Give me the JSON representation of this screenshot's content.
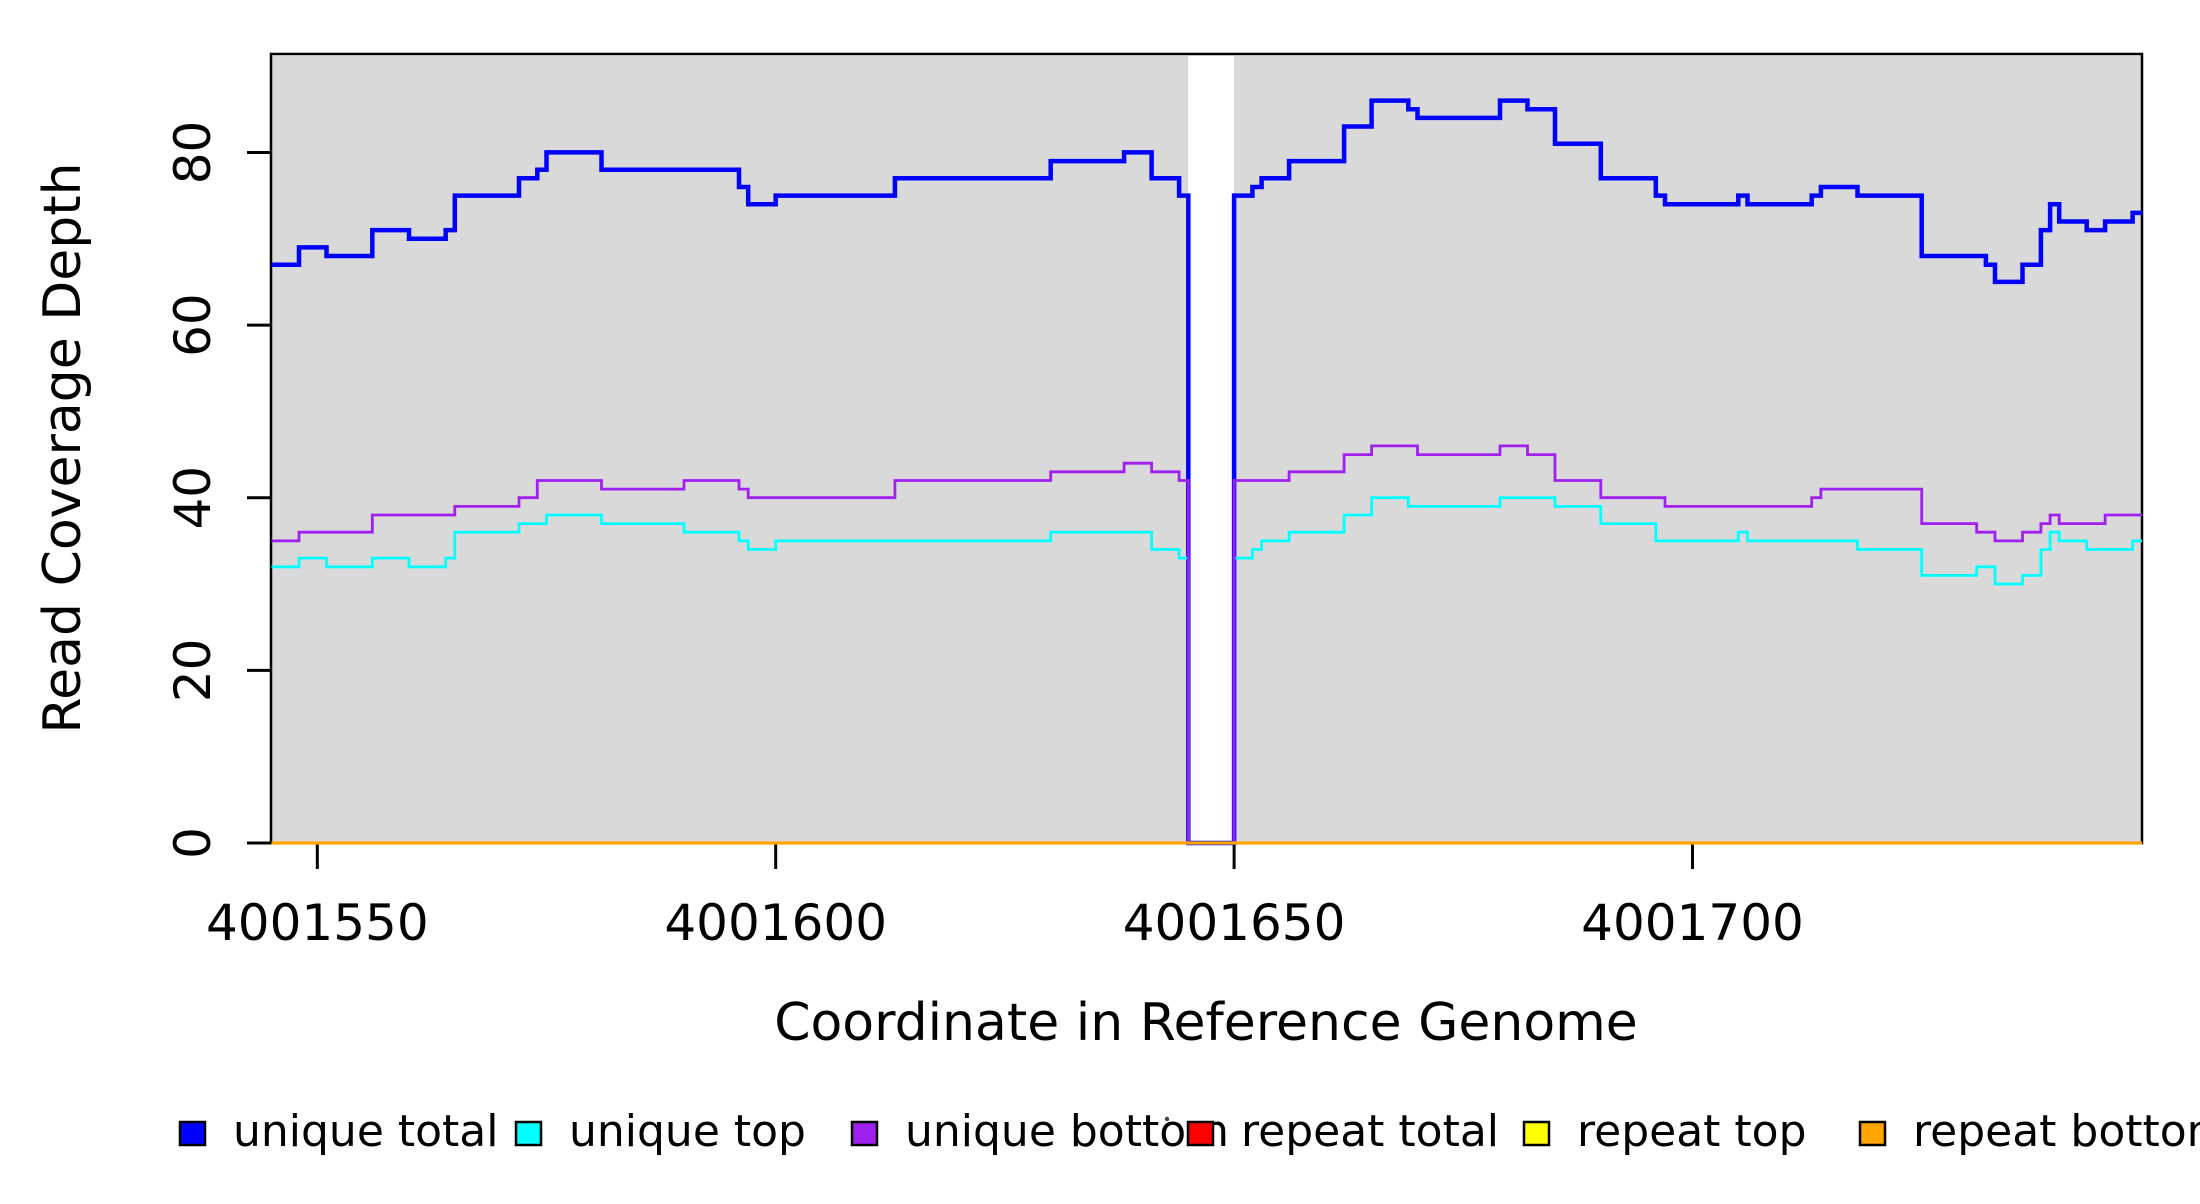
{
  "chart_data": {
    "type": "line",
    "subtype": "step-coverage-plot",
    "title": "",
    "xlabel": "Coordinate in Reference Genome",
    "ylabel": "Read Coverage Depth",
    "xlim": [
      4001545,
      4001749
    ],
    "ylim": [
      0,
      91.5
    ],
    "x_ticks": [
      4001550,
      4001600,
      4001650,
      4001700
    ],
    "y_ticks": [
      0,
      20,
      40,
      60,
      80
    ],
    "grid": false,
    "panel_color": "#d9d9d9",
    "gap_band": [
      4001645,
      4001650
    ],
    "shaded_ranges": [
      [
        4001545,
        4001645
      ],
      [
        4001650,
        4001749
      ]
    ],
    "legend_position": "bottom",
    "series": [
      {
        "name": "unique total",
        "color": "#0000ff",
        "width": 4.5,
        "points": [
          [
            4001545,
            67
          ],
          [
            4001548,
            69
          ],
          [
            4001551,
            68
          ],
          [
            4001556,
            71
          ],
          [
            4001560,
            70
          ],
          [
            4001564,
            71
          ],
          [
            4001565,
            75
          ],
          [
            4001572,
            77
          ],
          [
            4001574,
            78
          ],
          [
            4001575,
            80
          ],
          [
            4001581,
            78
          ],
          [
            4001596,
            76
          ],
          [
            4001597,
            74
          ],
          [
            4001600,
            75
          ],
          [
            4001613,
            77
          ],
          [
            4001630,
            79
          ],
          [
            4001638,
            80
          ],
          [
            4001641,
            77
          ],
          [
            4001644,
            75
          ],
          [
            4001645,
            0
          ],
          [
            4001650,
            75
          ],
          [
            4001652,
            76
          ],
          [
            4001653,
            77
          ],
          [
            4001656,
            79
          ],
          [
            4001662,
            83
          ],
          [
            4001665,
            86
          ],
          [
            4001669,
            85
          ],
          [
            4001670,
            84
          ],
          [
            4001679,
            86
          ],
          [
            4001682,
            85
          ],
          [
            4001685,
            81
          ],
          [
            4001690,
            77
          ],
          [
            4001696,
            75
          ],
          [
            4001697,
            74
          ],
          [
            4001705,
            75
          ],
          [
            4001706,
            74
          ],
          [
            4001713,
            75
          ],
          [
            4001714,
            76
          ],
          [
            4001718,
            75
          ],
          [
            4001725,
            68
          ],
          [
            4001732,
            67
          ],
          [
            4001733,
            65
          ],
          [
            4001736,
            67
          ],
          [
            4001738,
            71
          ],
          [
            4001739,
            74
          ],
          [
            4001740,
            72
          ],
          [
            4001743,
            71
          ],
          [
            4001745,
            72
          ],
          [
            4001748,
            73
          ]
        ]
      },
      {
        "name": "unique top",
        "color": "#00ffff",
        "width": 2.8,
        "points": [
          [
            4001545,
            32
          ],
          [
            4001548,
            33
          ],
          [
            4001551,
            32
          ],
          [
            4001556,
            33
          ],
          [
            4001560,
            32
          ],
          [
            4001564,
            33
          ],
          [
            4001565,
            36
          ],
          [
            4001572,
            37
          ],
          [
            4001575,
            38
          ],
          [
            4001581,
            37
          ],
          [
            4001590,
            36
          ],
          [
            4001596,
            35
          ],
          [
            4001597,
            34
          ],
          [
            4001600,
            35
          ],
          [
            4001630,
            36
          ],
          [
            4001641,
            34
          ],
          [
            4001644,
            33
          ],
          [
            4001645,
            0
          ],
          [
            4001650,
            33
          ],
          [
            4001652,
            34
          ],
          [
            4001653,
            35
          ],
          [
            4001656,
            36
          ],
          [
            4001662,
            38
          ],
          [
            4001665,
            40
          ],
          [
            4001669,
            39
          ],
          [
            4001679,
            40
          ],
          [
            4001685,
            39
          ],
          [
            4001690,
            37
          ],
          [
            4001696,
            35
          ],
          [
            4001705,
            36
          ],
          [
            4001706,
            35
          ],
          [
            4001718,
            34
          ],
          [
            4001725,
            31
          ],
          [
            4001731,
            32
          ],
          [
            4001733,
            30
          ],
          [
            4001736,
            31
          ],
          [
            4001738,
            34
          ],
          [
            4001739,
            36
          ],
          [
            4001740,
            35
          ],
          [
            4001743,
            34
          ],
          [
            4001748,
            35
          ]
        ]
      },
      {
        "name": "unique bottom",
        "color": "#a020f0",
        "width": 2.8,
        "points": [
          [
            4001545,
            35
          ],
          [
            4001548,
            36
          ],
          [
            4001556,
            38
          ],
          [
            4001565,
            39
          ],
          [
            4001572,
            40
          ],
          [
            4001574,
            42
          ],
          [
            4001581,
            41
          ],
          [
            4001590,
            42
          ],
          [
            4001596,
            41
          ],
          [
            4001597,
            40
          ],
          [
            4001613,
            42
          ],
          [
            4001630,
            43
          ],
          [
            4001638,
            44
          ],
          [
            4001641,
            43
          ],
          [
            4001644,
            42
          ],
          [
            4001645,
            0
          ],
          [
            4001650,
            42
          ],
          [
            4001656,
            43
          ],
          [
            4001662,
            45
          ],
          [
            4001665,
            46
          ],
          [
            4001670,
            45
          ],
          [
            4001679,
            46
          ],
          [
            4001682,
            45
          ],
          [
            4001685,
            42
          ],
          [
            4001690,
            40
          ],
          [
            4001697,
            39
          ],
          [
            4001713,
            40
          ],
          [
            4001714,
            41
          ],
          [
            4001725,
            37
          ],
          [
            4001731,
            36
          ],
          [
            4001733,
            35
          ],
          [
            4001736,
            36
          ],
          [
            4001738,
            37
          ],
          [
            4001739,
            38
          ],
          [
            4001740,
            37
          ],
          [
            4001745,
            38
          ]
        ]
      },
      {
        "name": "repeat total",
        "color": "#ff0000",
        "width": 2.5,
        "points": [
          [
            4001545,
            0
          ]
        ]
      },
      {
        "name": "repeat top",
        "color": "#ffff00",
        "width": 2.5,
        "points": [
          [
            4001545,
            0
          ]
        ]
      },
      {
        "name": "repeat bottom",
        "color": "#ffa500",
        "width": 3.2,
        "points": [
          [
            4001545,
            0
          ]
        ]
      }
    ],
    "legend": {
      "items": [
        {
          "label": "unique total",
          "color": "#0000ff"
        },
        {
          "label": "unique top",
          "color": "#00ffff"
        },
        {
          "label": "unique bottom",
          "color": "#a020f0"
        },
        {
          "label": "repeat total",
          "color": "#ff0000"
        },
        {
          "label": "repeat top",
          "color": "#ffff00"
        },
        {
          "label": "repeat bottom",
          "color": "#ffa500"
        }
      ]
    },
    "artifact_dot": true
  }
}
